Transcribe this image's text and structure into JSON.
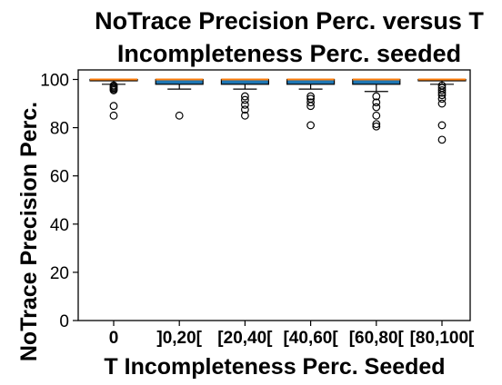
{
  "chart_data": {
    "type": "box",
    "title_lines": [
      "NoTrace Precision Perc. versus T",
      "Incompleteness Perc. seeded"
    ],
    "xlabel": "T Incompleteness Perc. Seeded",
    "ylabel": "NoTrace Precision Perc.",
    "ylim": [
      0,
      105
    ],
    "yticks": [
      0,
      20,
      40,
      60,
      80,
      100
    ],
    "categories": [
      "0",
      "]0,20[",
      "[20,40[",
      "[40,60[",
      "[60,80[",
      "[80,100["
    ],
    "boxes": [
      {
        "whisker_low": 98,
        "q1": 99.5,
        "median": 100,
        "q3": 100,
        "whisker_high": 100,
        "outliers": [
          85,
          89,
          95.5,
          96,
          96.5,
          97,
          97.5
        ]
      },
      {
        "whisker_low": 96,
        "q1": 98,
        "median": 100,
        "q3": 100,
        "whisker_high": 100,
        "outliers": [
          85
        ]
      },
      {
        "whisker_low": 96,
        "q1": 98,
        "median": 100,
        "q3": 100,
        "whisker_high": 100,
        "outliers": [
          85,
          87.5,
          89.5,
          91.5,
          93
        ]
      },
      {
        "whisker_low": 96,
        "q1": 98,
        "median": 100,
        "q3": 100,
        "whisker_high": 100,
        "outliers": [
          81,
          89,
          90.5,
          92,
          93
        ]
      },
      {
        "whisker_low": 95,
        "q1": 98,
        "median": 100,
        "q3": 100,
        "whisker_high": 100,
        "outliers": [
          80.5,
          81.5,
          85,
          88.5,
          90.5,
          93
        ]
      },
      {
        "whisker_low": 98,
        "q1": 99.5,
        "median": 100,
        "q3": 100,
        "whisker_high": 100,
        "outliers": [
          75,
          81,
          90,
          92,
          93.5,
          94.5,
          95.5,
          96.5,
          97.5
        ]
      }
    ],
    "box_color": "#1f77b4",
    "median_color": "#ff7f0e",
    "grid": false,
    "legend": "none"
  }
}
